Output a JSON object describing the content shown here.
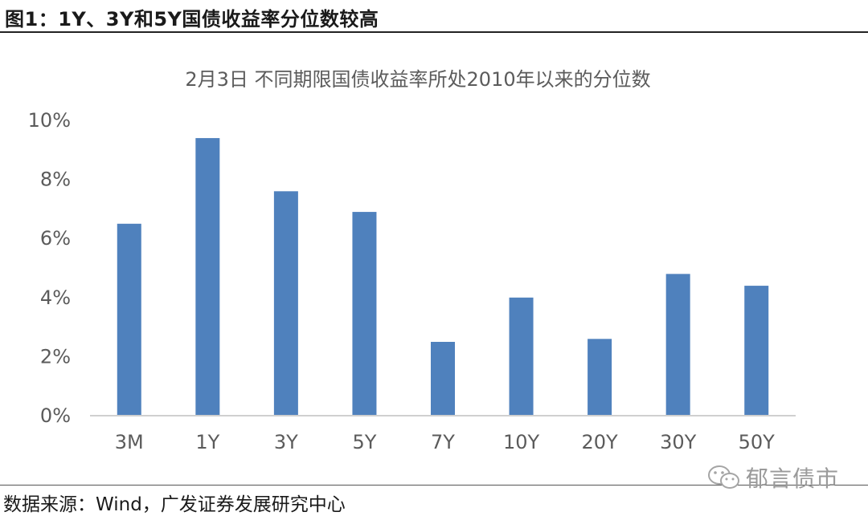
{
  "figure": {
    "title": "图1：1Y、3Y和5Y国债收益率分位数较高",
    "source": "数据来源：Wind，广发证券发展研究中心",
    "watermark": "郁言债市",
    "watermark_icon": "wechat-icon"
  },
  "chart_data": {
    "type": "bar",
    "title": "2月3日 不同期限国债收益率所处2010年以来的分位数",
    "categories": [
      "3M",
      "1Y",
      "3Y",
      "5Y",
      "7Y",
      "10Y",
      "20Y",
      "30Y",
      "50Y"
    ],
    "values": [
      6.5,
      9.4,
      7.6,
      6.9,
      2.5,
      4.0,
      2.6,
      4.8,
      4.4
    ],
    "unit": "%",
    "ylim": [
      0,
      10
    ],
    "yticks": [
      "0%",
      "2%",
      "4%",
      "6%",
      "8%",
      "10%"
    ],
    "ytick_values": [
      0,
      2,
      4,
      6,
      8,
      10
    ],
    "bar_color": "#4f81bd",
    "grid": false,
    "legend": "none",
    "xlabel": "",
    "ylabel": ""
  }
}
